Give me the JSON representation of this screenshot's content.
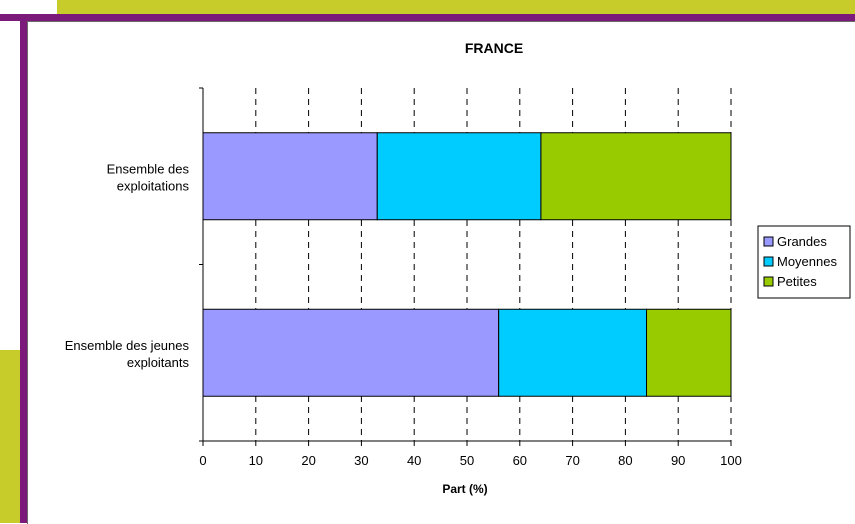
{
  "chart_data": {
    "type": "bar",
    "orientation": "horizontal",
    "stacked": true,
    "title": "FRANCE",
    "xlabel": "Part (%)",
    "ylabel": "",
    "xlim": [
      0,
      100
    ],
    "xticks": [
      "0",
      "10",
      "20",
      "30",
      "40",
      "50",
      "60",
      "70",
      "80",
      "90",
      "100"
    ],
    "categories": [
      [
        "Ensemble des",
        "exploitations"
      ],
      [
        "Ensemble des jeunes",
        "exploitants"
      ]
    ],
    "series": [
      {
        "name": "Grandes",
        "values": [
          33,
          56
        ],
        "color": "#9999ff"
      },
      {
        "name": "Moyennes",
        "values": [
          31,
          28
        ],
        "color": "#00ccff"
      },
      {
        "name": "Petites",
        "values": [
          36,
          16
        ],
        "color": "#99cc00"
      }
    ],
    "grid": "vertical-dashed",
    "legend_position": "right"
  },
  "colors": {
    "frame_olive": "#c8cc2b",
    "frame_purple": "#7b1a7b"
  }
}
